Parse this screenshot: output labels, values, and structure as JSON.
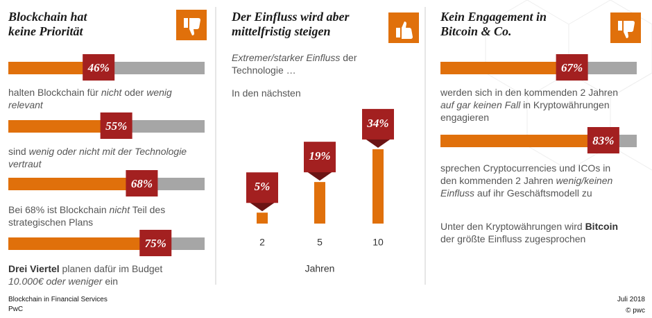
{
  "panels": [
    {
      "title": [
        "Blockchain hat",
        "keine Priorität"
      ],
      "xlim": [
        0,
        100
      ],
      "items": [
        {
          "value": 46,
          "label": "46%",
          "text": [
            [
              {
                "text": "halten Blockchain für "
              },
              {
                "text": "nicht",
                "style": "italic"
              },
              {
                "text": " oder "
              },
              {
                "text": "wenig",
                "style": "italic"
              }
            ],
            [
              {
                "text": "relevant",
                "style": "italic"
              }
            ]
          ]
        },
        {
          "value": 55,
          "label": "55%",
          "text": [
            [
              {
                "text": "sind "
              },
              {
                "text": "wenig oder nicht mit der Technologie",
                "style": "italic"
              }
            ],
            [
              {
                "text": "vertraut",
                "style": "italic"
              }
            ]
          ]
        },
        {
          "value": 68,
          "label": "68%",
          "text": [
            [
              {
                "text": "Bei 68% ist Blockchain "
              },
              {
                "text": "nicht",
                "style": "italic"
              },
              {
                "text": " Teil des"
              }
            ],
            [
              {
                "text": "strategischen Plans"
              }
            ]
          ]
        },
        {
          "value": 75,
          "label": "75%",
          "text": [
            [
              {
                "text": "Drei Viertel",
                "style": "bold"
              },
              {
                "text": " planen dafür im Budget"
              }
            ],
            [
              {
                "text": "10.000€ oder weniger",
                "style": "italic"
              },
              {
                "text": " ein"
              }
            ]
          ]
        }
      ]
    },
    {
      "title": [
        "Der Einfluss wird aber",
        "mittelfristig steigen"
      ],
      "intro": [
        [
          {
            "text": "Extremer/starker Einfluss",
            "style": "italic"
          },
          {
            "text": " der"
          }
        ],
        [
          {
            "text": "Technologie …"
          }
        ]
      ],
      "subtitle": "In den nächsten",
      "ylim": [
        0,
        40
      ],
      "columns": [
        {
          "category": "2",
          "value": 5,
          "label": "5%"
        },
        {
          "category": "5",
          "value": 19,
          "label": "19%"
        },
        {
          "category": "10",
          "value": 34,
          "label": "34%"
        }
      ],
      "unit": "Jahren"
    },
    {
      "title": [
        "Kein Engagement in",
        "Bitcoin & Co."
      ],
      "xlim": [
        0,
        100
      ],
      "items": [
        {
          "value": 67,
          "label": "67%",
          "text": [
            [
              {
                "text": "werden sich in den kommenden 2 Jahren"
              }
            ],
            [
              {
                "text": "auf gar keinen Fall",
                "style": "italic"
              },
              {
                "text": " in Kryptowährungen"
              }
            ],
            [
              {
                "text": "engagieren"
              }
            ]
          ]
        },
        {
          "value": 83,
          "label": "83%",
          "text": [
            [
              {
                "text": "sprechen Cryptocurrencies und ICOs in"
              }
            ],
            [
              {
                "text": "den kommenden 2 Jahren "
              },
              {
                "text": "wenig/keinen",
                "style": "italic"
              }
            ],
            [
              {
                "text": "Einfluss",
                "style": "italic"
              },
              {
                "text": " auf ihr Geschäftsmodell zu"
              }
            ]
          ]
        }
      ],
      "notes": [
        [
          {
            "text": "Unter den Kryptowährungen wird "
          },
          {
            "text": "Bitcoin",
            "style": "bold"
          }
        ],
        [
          {
            "text": "der größte Einfluss zugesprochen"
          }
        ]
      ]
    }
  ],
  "footer": {
    "left": [
      "Blockchain in Financial Services",
      "PwC"
    ],
    "right": [
      "Juli 2018",
      "© pwc"
    ]
  }
}
